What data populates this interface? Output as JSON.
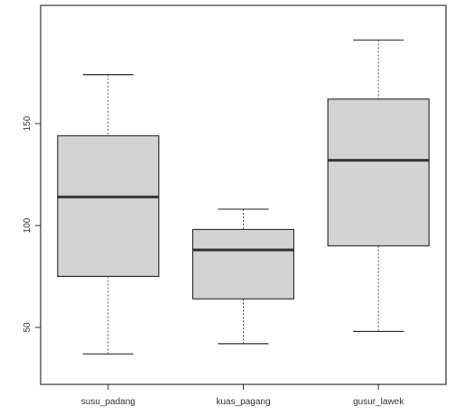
{
  "chart_data": {
    "type": "boxplot",
    "title": "",
    "xlabel": "",
    "ylabel": "",
    "ylim": [
      30,
      200
    ],
    "yticks": [
      50,
      100,
      150
    ],
    "grid": false,
    "legend": "none",
    "box_fill": "#d3d3d3",
    "line_color": "#333333",
    "categories": [
      "susu_padang",
      "kuas_pagang",
      "gusur_lawek"
    ],
    "boxes": [
      {
        "category": "susu_padang",
        "min": 37,
        "q1": 75,
        "median": 114,
        "q3": 144,
        "max": 174
      },
      {
        "category": "kuas_pagang",
        "min": 42,
        "q1": 64,
        "median": 88,
        "q3": 98,
        "max": 108
      },
      {
        "category": "gusur_lawek",
        "min": 48,
        "q1": 90,
        "median": 132,
        "q3": 162,
        "max": 191
      }
    ]
  }
}
